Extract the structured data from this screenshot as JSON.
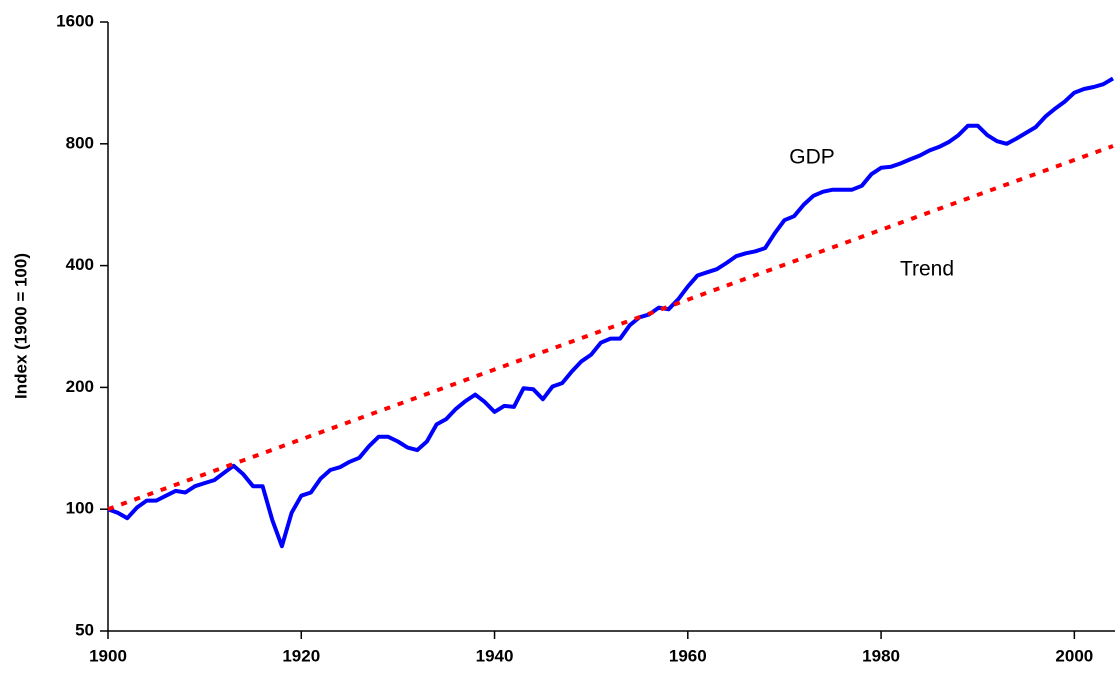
{
  "chart_data": {
    "type": "line",
    "y_label": "Index (1900 = 100)",
    "xlim": [
      1900,
      2004
    ],
    "xticks": [
      1900,
      1920,
      1940,
      1960,
      1980,
      2000
    ],
    "ylim": [
      50,
      1600
    ],
    "yticks": [
      50,
      100,
      200,
      400,
      800,
      1600
    ],
    "log_y": true,
    "grid": false,
    "annotations": [
      "GDP",
      "Trend"
    ],
    "series": [
      {
        "color": "#0000ff",
        "style": "solid",
        "x": [
          1900,
          1901,
          1902,
          1903,
          1904,
          1905,
          1906,
          1907,
          1908,
          1909,
          1910,
          1911,
          1912,
          1913,
          1914,
          1915,
          1916,
          1917,
          1918,
          1919,
          1920,
          1921,
          1922,
          1923,
          1924,
          1925,
          1926,
          1927,
          1928,
          1929,
          1930,
          1931,
          1932,
          1933,
          1934,
          1935,
          1936,
          1937,
          1938,
          1939,
          1940,
          1941,
          1942,
          1943,
          1944,
          1945,
          1946,
          1947,
          1948,
          1949,
          1950,
          1951,
          1952,
          1953,
          1954,
          1955,
          1956,
          1957,
          1958,
          1959,
          1960,
          1961,
          1962,
          1963,
          1964,
          1965,
          1966,
          1967,
          1968,
          1969,
          1970,
          1971,
          1972,
          1973,
          1974,
          1975,
          1976,
          1977,
          1978,
          1979,
          1980,
          1981,
          1982,
          1983,
          1984,
          1985,
          1986,
          1987,
          1988,
          1989,
          1990,
          1991,
          1992,
          1993,
          1994,
          1995,
          1996,
          1997,
          1998,
          1999,
          2000,
          2001,
          2002,
          2003,
          2004
        ],
        "values": [
          100,
          98,
          95,
          101,
          105,
          105,
          108,
          111,
          110,
          114,
          116,
          118,
          123,
          128,
          122,
          114,
          114,
          94,
          81,
          98,
          108,
          110,
          119,
          125,
          127,
          131,
          134,
          143,
          151,
          151,
          147,
          142,
          140,
          147,
          162,
          167,
          177,
          185,
          192,
          184,
          174,
          180,
          179,
          199,
          198,
          187,
          201,
          205,
          219,
          232,
          241,
          258,
          264,
          264,
          285,
          298,
          303,
          315,
          312,
          330,
          355,
          378,
          385,
          392,
          406,
          422,
          429,
          434,
          442,
          481,
          518,
          530,
          566,
          595,
          609,
          616,
          616,
          616,
          630,
          673,
          698,
          702,
          715,
          732,
          748,
          770,
          786,
          808,
          840,
          887,
          887,
          840,
          812,
          800,
          824,
          851,
          880,
          934,
          977,
          1017,
          1070,
          1093,
          1105,
          1123,
          1160
        ]
      },
      {
        "color": "#ff0000",
        "style": "dotted",
        "x": [
          1900,
          2004
        ],
        "values": [
          100,
          790
        ]
      }
    ]
  }
}
